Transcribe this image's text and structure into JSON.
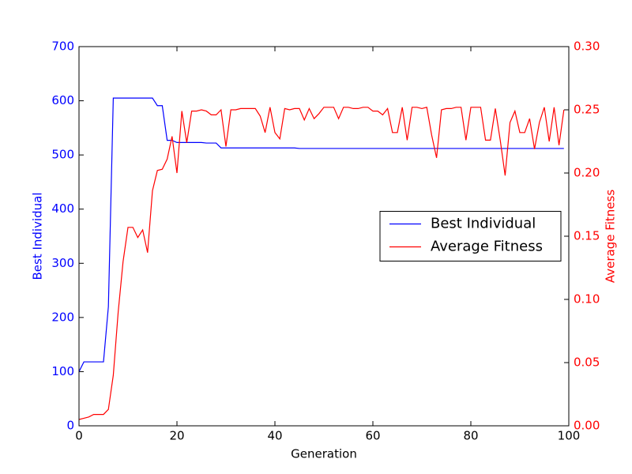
{
  "chart_data": {
    "type": "line",
    "x": [
      0,
      1,
      2,
      3,
      4,
      5,
      6,
      7,
      8,
      9,
      10,
      11,
      12,
      13,
      14,
      15,
      16,
      17,
      18,
      19,
      20,
      21,
      22,
      23,
      24,
      25,
      26,
      27,
      28,
      29,
      30,
      31,
      32,
      33,
      34,
      35,
      36,
      37,
      38,
      39,
      40,
      41,
      42,
      43,
      44,
      45,
      46,
      47,
      48,
      49,
      50,
      51,
      52,
      53,
      54,
      55,
      56,
      57,
      58,
      59,
      60,
      61,
      62,
      63,
      64,
      65,
      66,
      67,
      68,
      69,
      70,
      71,
      72,
      73,
      74,
      75,
      76,
      77,
      78,
      79,
      80,
      81,
      82,
      83,
      84,
      85,
      86,
      87,
      88,
      89,
      90,
      91,
      92,
      93,
      94,
      95,
      96,
      97,
      98,
      99
    ],
    "series": [
      {
        "name": "Best Individual",
        "color": "#0000ff",
        "axis": "y",
        "values": [
          100,
          118,
          118,
          118,
          118,
          118,
          220,
          605,
          605,
          605,
          605,
          605,
          605,
          605,
          605,
          605,
          591,
          591,
          527,
          527,
          523,
          523,
          523,
          523,
          523,
          523,
          522,
          522,
          522,
          513,
          513,
          513,
          513,
          513,
          513,
          513,
          513,
          513,
          513,
          513,
          513,
          513,
          513,
          513,
          513,
          512,
          512,
          512,
          512,
          512,
          512,
          512,
          512,
          512,
          512,
          512,
          512,
          512,
          512,
          512,
          512,
          512,
          512,
          512,
          512,
          512,
          512,
          512,
          512,
          512,
          512,
          512,
          512,
          512,
          512,
          512,
          512,
          512,
          512,
          512,
          512,
          512,
          512,
          512,
          512,
          512,
          512,
          512,
          512,
          512,
          512,
          512,
          512,
          512,
          512,
          512,
          512,
          512,
          512,
          512
        ]
      },
      {
        "name": "Average Fitness",
        "color": "#ff0000",
        "axis": "y2",
        "values": [
          0.005,
          0.006,
          0.007,
          0.009,
          0.009,
          0.009,
          0.013,
          0.04,
          0.09,
          0.13,
          0.157,
          0.157,
          0.149,
          0.155,
          0.137,
          0.186,
          0.202,
          0.203,
          0.211,
          0.229,
          0.2,
          0.249,
          0.224,
          0.249,
          0.249,
          0.25,
          0.249,
          0.246,
          0.246,
          0.25,
          0.221,
          0.25,
          0.25,
          0.251,
          0.251,
          0.251,
          0.251,
          0.245,
          0.232,
          0.252,
          0.232,
          0.227,
          0.251,
          0.25,
          0.251,
          0.251,
          0.242,
          0.251,
          0.243,
          0.247,
          0.252,
          0.252,
          0.252,
          0.243,
          0.252,
          0.252,
          0.251,
          0.251,
          0.252,
          0.252,
          0.249,
          0.249,
          0.246,
          0.251,
          0.232,
          0.232,
          0.252,
          0.226,
          0.252,
          0.252,
          0.251,
          0.252,
          0.23,
          0.212,
          0.25,
          0.251,
          0.251,
          0.252,
          0.252,
          0.226,
          0.252,
          0.252,
          0.252,
          0.226,
          0.226,
          0.251,
          0.226,
          0.198,
          0.24,
          0.249,
          0.232,
          0.232,
          0.243,
          0.219,
          0.24,
          0.252,
          0.225,
          0.252,
          0.222,
          0.25
        ]
      }
    ],
    "x_label": "Generation",
    "y_label": "Best Individual",
    "y2_label": "Average Fitness",
    "xlim": [
      0,
      100
    ],
    "xticks": [
      0,
      20,
      40,
      60,
      80,
      100
    ],
    "ylim": [
      0,
      700
    ],
    "yticks": [
      0,
      100,
      200,
      300,
      400,
      500,
      600,
      700
    ],
    "y2lim": [
      0,
      0.3
    ],
    "y2ticks": [
      {
        "value": 0,
        "label": "0.00"
      },
      {
        "value": 0.05,
        "label": "0.05"
      },
      {
        "value": 0.1,
        "label": "0.10"
      },
      {
        "value": 0.15,
        "label": "0.15"
      },
      {
        "value": 0.2,
        "label": "0.20"
      },
      {
        "value": 0.25,
        "label": "0.25"
      },
      {
        "value": 0.3,
        "label": "0.30"
      }
    ],
    "legend": "center right",
    "grid": false
  }
}
